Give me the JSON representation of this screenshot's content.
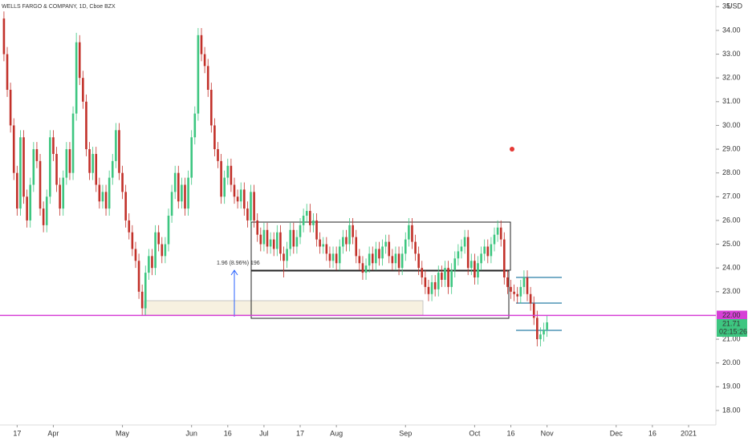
{
  "chart_data": {
    "type": "candlestick",
    "title": "WELLS FARGO & COMPANY, 1D, Cboe BZX",
    "currency": "USD",
    "annotation": "1.96 (8.96%) 196",
    "last_price_label": "21.71",
    "countdown": "02:15:26",
    "hline_label": "22.00",
    "hline": 22,
    "hline_color": "#d63fd6",
    "up_color": "#3dc680",
    "down_color": "#c2312a",
    "grid": false,
    "xlim": [
      -1.2,
      216.3
    ],
    "ylim": [
      17.39,
      35.28
    ],
    "xticks": [
      {
        "value": 4,
        "label": "17"
      },
      {
        "value": 15,
        "label": "Apr"
      },
      {
        "value": 36,
        "label": "May"
      },
      {
        "value": 57,
        "label": "Jun"
      },
      {
        "value": 68,
        "label": "16"
      },
      {
        "value": 79,
        "label": "Jul"
      },
      {
        "value": 90,
        "label": "17"
      },
      {
        "value": 101,
        "label": "Aug"
      },
      {
        "value": 122,
        "label": "Sep"
      },
      {
        "value": 143,
        "label": "Oct"
      },
      {
        "value": 154,
        "label": "16"
      },
      {
        "value": 165,
        "label": "Nov"
      },
      {
        "value": 186,
        "label": "Dec"
      },
      {
        "value": 197,
        "label": "16"
      },
      {
        "value": 208,
        "label": "2021"
      }
    ],
    "yticks": [
      {
        "value": 18,
        "label": "18.00"
      },
      {
        "value": 19,
        "label": "19.00"
      },
      {
        "value": 20,
        "label": "20.00"
      },
      {
        "value": 21,
        "label": "21.00"
      },
      {
        "value": 23,
        "label": "23.00"
      },
      {
        "value": 24,
        "label": "24.00"
      },
      {
        "value": 25,
        "label": "25.00"
      },
      {
        "value": 26,
        "label": "26.00"
      },
      {
        "value": 27,
        "label": "27.00"
      },
      {
        "value": 28,
        "label": "28.00"
      },
      {
        "value": 29,
        "label": "29.00"
      },
      {
        "value": 30,
        "label": "30.00"
      },
      {
        "value": 31,
        "label": "31.00"
      },
      {
        "value": 32,
        "label": "32.00"
      },
      {
        "value": 33,
        "label": "33.00"
      },
      {
        "value": 34,
        "label": "34.00"
      },
      35
    ],
    "candles": [
      [
        34.5,
        34.8,
        32.7,
        33.0
      ],
      [
        33.0,
        33.3,
        31.2,
        31.5
      ],
      [
        31.5,
        31.8,
        29.7,
        30.0
      ],
      [
        30.0,
        30.3,
        27.7,
        28.0
      ],
      [
        28.0,
        28.3,
        26.2,
        26.5
      ],
      [
        26.5,
        29.8,
        26.2,
        29.5
      ],
      [
        29.5,
        29.8,
        26.7,
        27.0
      ],
      [
        27.0,
        27.3,
        25.7,
        26.0
      ],
      [
        26.0,
        27.8,
        25.7,
        27.5
      ],
      [
        27.5,
        29.3,
        27.2,
        29.0
      ],
      [
        29.0,
        29.3,
        28.2,
        28.5
      ],
      [
        28.5,
        28.8,
        26.2,
        26.5
      ],
      [
        26.5,
        26.8,
        25.5,
        25.8
      ],
      [
        25.8,
        27.3,
        25.5,
        27.0
      ],
      [
        27.0,
        29.8,
        26.7,
        29.5
      ],
      [
        29.5,
        29.8,
        28.5,
        28.8
      ],
      [
        28.8,
        29.1,
        27.2,
        27.5
      ],
      [
        27.5,
        27.8,
        26.2,
        26.5
      ],
      [
        26.5,
        28.1,
        26.2,
        27.8
      ],
      [
        27.8,
        29.3,
        27.5,
        29.0
      ],
      [
        29.0,
        29.3,
        27.7,
        28.0
      ],
      [
        28.0,
        30.8,
        27.7,
        30.5
      ],
      [
        30.5,
        33.9,
        30.2,
        33.5
      ],
      [
        33.5,
        33.8,
        31.7,
        32.0
      ],
      [
        32.0,
        32.3,
        30.7,
        31.0
      ],
      [
        31.0,
        31.3,
        28.7,
        29.0
      ],
      [
        29.0,
        29.3,
        27.7,
        28.0
      ],
      [
        28.0,
        29.1,
        27.7,
        28.8
      ],
      [
        28.8,
        29.1,
        27.2,
        27.5
      ],
      [
        27.5,
        27.8,
        26.5,
        26.8
      ],
      [
        26.8,
        27.5,
        26.5,
        27.2
      ],
      [
        27.2,
        27.5,
        26.2,
        26.5
      ],
      [
        26.5,
        28.1,
        26.2,
        27.8
      ],
      [
        27.8,
        28.8,
        27.5,
        28.5
      ],
      [
        28.5,
        30.1,
        28.2,
        29.8
      ],
      [
        29.8,
        30.1,
        27.7,
        28.0
      ],
      [
        28.0,
        28.3,
        26.9,
        27.2
      ],
      [
        27.2,
        27.5,
        25.7,
        26.0
      ],
      [
        26.0,
        26.3,
        25.2,
        25.5
      ],
      [
        25.5,
        25.8,
        24.5,
        24.8
      ],
      [
        24.8,
        25.1,
        24.0,
        24.3
      ],
      [
        24.3,
        24.6,
        22.7,
        23.0
      ],
      [
        23.0,
        23.3,
        22.0,
        22.3
      ],
      [
        22.3,
        24.1,
        22.0,
        23.8
      ],
      [
        23.8,
        24.8,
        23.5,
        24.5
      ],
      [
        24.5,
        24.8,
        23.7,
        24.0
      ],
      [
        24.0,
        25.8,
        23.7,
        25.5
      ],
      [
        25.5,
        25.8,
        24.7,
        25.0
      ],
      [
        25.0,
        25.3,
        24.2,
        24.5
      ],
      [
        24.5,
        25.3,
        24.2,
        25.0
      ],
      [
        25.0,
        26.5,
        24.7,
        26.2
      ],
      [
        26.2,
        27.5,
        25.9,
        27.2
      ],
      [
        27.2,
        28.3,
        26.9,
        28.0
      ],
      [
        28.0,
        28.3,
        26.5,
        26.8
      ],
      [
        26.8,
        27.8,
        26.5,
        27.5
      ],
      [
        27.5,
        27.8,
        26.2,
        26.5
      ],
      [
        26.5,
        28.1,
        26.2,
        27.8
      ],
      [
        27.8,
        29.8,
        27.5,
        29.5
      ],
      [
        29.5,
        30.8,
        29.2,
        30.5
      ],
      [
        30.5,
        34.1,
        30.2,
        33.8
      ],
      [
        33.8,
        34.1,
        32.7,
        33.0
      ],
      [
        33.0,
        33.3,
        32.2,
        32.5
      ],
      [
        32.5,
        32.8,
        31.2,
        31.5
      ],
      [
        31.5,
        31.8,
        29.7,
        30.0
      ],
      [
        30.0,
        30.3,
        28.7,
        29.0
      ],
      [
        29.0,
        29.3,
        28.2,
        28.5
      ],
      [
        28.5,
        28.8,
        26.7,
        27.0
      ],
      [
        27.0,
        28.1,
        26.7,
        27.8
      ],
      [
        27.8,
        28.6,
        27.5,
        28.3
      ],
      [
        28.3,
        28.6,
        27.2,
        27.5
      ],
      [
        27.5,
        27.8,
        26.7,
        27.0
      ],
      [
        27.0,
        27.3,
        26.5,
        26.8
      ],
      [
        26.8,
        27.6,
        26.5,
        27.3
      ],
      [
        27.3,
        27.6,
        26.2,
        26.5
      ],
      [
        26.5,
        26.8,
        25.7,
        26.0
      ],
      [
        26.0,
        27.5,
        25.7,
        27.2
      ],
      [
        27.2,
        27.5,
        25.7,
        26.0
      ],
      [
        26.0,
        26.3,
        25.1,
        25.4
      ],
      [
        25.4,
        25.7,
        24.7,
        25.0
      ],
      [
        25.0,
        25.9,
        24.7,
        25.6
      ],
      [
        25.6,
        25.9,
        24.6,
        24.9
      ],
      [
        24.9,
        25.5,
        24.6,
        25.2
      ],
      [
        25.2,
        25.5,
        24.5,
        24.8
      ],
      [
        24.8,
        25.8,
        24.5,
        25.5
      ],
      [
        25.5,
        25.8,
        24.3,
        24.6
      ],
      [
        24.6,
        24.9,
        23.6,
        24.3
      ],
      [
        24.3,
        25.1,
        24.0,
        24.8
      ],
      [
        24.8,
        25.9,
        24.5,
        25.6
      ],
      [
        25.6,
        25.9,
        24.6,
        24.9
      ],
      [
        24.9,
        25.6,
        24.6,
        25.3
      ],
      [
        25.3,
        26.1,
        25.0,
        25.8
      ],
      [
        25.8,
        26.5,
        25.5,
        26.2
      ],
      [
        26.2,
        26.7,
        25.9,
        26.4
      ],
      [
        26.4,
        26.7,
        25.5,
        25.8
      ],
      [
        25.8,
        26.3,
        25.5,
        26.0
      ],
      [
        26.0,
        26.3,
        24.9,
        25.2
      ],
      [
        25.2,
        25.5,
        24.6,
        24.9
      ],
      [
        24.9,
        25.3,
        24.6,
        25.0
      ],
      [
        25.0,
        25.3,
        24.3,
        24.6
      ],
      [
        24.6,
        24.9,
        24.0,
        24.3
      ],
      [
        24.3,
        24.9,
        24.0,
        24.6
      ],
      [
        24.6,
        24.9,
        23.9,
        24.2
      ],
      [
        24.2,
        25.2,
        23.9,
        24.9
      ],
      [
        24.9,
        25.6,
        24.6,
        25.3
      ],
      [
        25.3,
        25.6,
        24.7,
        25.0
      ],
      [
        25.0,
        26.1,
        24.7,
        25.8
      ],
      [
        25.8,
        26.1,
        25.0,
        25.3
      ],
      [
        25.3,
        25.6,
        24.2,
        24.5
      ],
      [
        24.5,
        24.8,
        23.9,
        24.2
      ],
      [
        24.2,
        24.5,
        23.5,
        23.8
      ],
      [
        23.8,
        24.4,
        23.5,
        24.1
      ],
      [
        24.1,
        24.9,
        23.8,
        24.6
      ],
      [
        24.6,
        24.9,
        23.9,
        24.2
      ],
      [
        24.2,
        25.1,
        23.9,
        24.8
      ],
      [
        24.8,
        25.1,
        24.1,
        24.4
      ],
      [
        24.4,
        25.2,
        24.1,
        24.9
      ],
      [
        24.9,
        25.4,
        24.6,
        25.1
      ],
      [
        25.1,
        25.4,
        24.2,
        24.5
      ],
      [
        24.5,
        24.8,
        23.9,
        24.2
      ],
      [
        24.2,
        24.9,
        23.9,
        24.6
      ],
      [
        24.6,
        24.9,
        23.7,
        24.0
      ],
      [
        24.0,
        24.9,
        23.7,
        24.6
      ],
      [
        24.6,
        25.5,
        24.3,
        25.2
      ],
      [
        25.2,
        26.1,
        24.9,
        25.8
      ],
      [
        25.8,
        26.1,
        24.8,
        25.1
      ],
      [
        25.1,
        25.4,
        24.3,
        24.6
      ],
      [
        24.6,
        24.9,
        23.7,
        24.0
      ],
      [
        24.0,
        24.3,
        23.3,
        23.6
      ],
      [
        23.6,
        23.9,
        22.9,
        23.2
      ],
      [
        23.2,
        23.5,
        22.6,
        22.9
      ],
      [
        22.9,
        23.7,
        22.6,
        23.4
      ],
      [
        23.4,
        23.7,
        22.8,
        23.1
      ],
      [
        23.1,
        24.1,
        22.8,
        23.8
      ],
      [
        23.8,
        24.1,
        23.2,
        23.5
      ],
      [
        23.5,
        24.3,
        23.2,
        24.0
      ],
      [
        24.0,
        24.3,
        22.9,
        23.2
      ],
      [
        23.2,
        24.2,
        22.9,
        23.9
      ],
      [
        23.9,
        24.7,
        23.6,
        24.4
      ],
      [
        24.4,
        25.0,
        24.1,
        24.7
      ],
      [
        24.7,
        25.2,
        24.4,
        24.9
      ],
      [
        24.9,
        25.6,
        24.6,
        25.3
      ],
      [
        25.3,
        25.6,
        23.7,
        24.0
      ],
      [
        24.0,
        24.6,
        23.7,
        24.3
      ],
      [
        24.3,
        24.6,
        23.3,
        23.6
      ],
      [
        23.6,
        24.5,
        23.3,
        24.2
      ],
      [
        24.2,
        24.9,
        23.9,
        24.6
      ],
      [
        24.6,
        25.2,
        24.3,
        24.9
      ],
      [
        24.9,
        25.2,
        24.2,
        24.5
      ],
      [
        24.5,
        25.3,
        24.2,
        25.0
      ],
      [
        25.0,
        25.7,
        24.7,
        25.4
      ],
      [
        25.4,
        26.0,
        25.1,
        25.7
      ],
      [
        25.7,
        26.0,
        24.9,
        25.2
      ],
      [
        25.2,
        25.5,
        23.3,
        23.6
      ],
      [
        23.6,
        23.9,
        22.9,
        23.2
      ],
      [
        23.2,
        23.5,
        22.7,
        23.0
      ],
      [
        23.0,
        23.3,
        22.6,
        22.9
      ],
      [
        22.9,
        23.2,
        22.5,
        22.8
      ],
      [
        22.8,
        23.5,
        22.5,
        23.2
      ],
      [
        23.2,
        23.9,
        22.9,
        23.6
      ],
      [
        23.6,
        23.9,
        22.6,
        22.9
      ],
      [
        22.9,
        23.2,
        22.2,
        22.5
      ],
      [
        22.5,
        22.8,
        21.6,
        21.9
      ],
      [
        21.9,
        22.2,
        20.7,
        21.0
      ],
      [
        21.0,
        21.5,
        20.7,
        21.2
      ],
      [
        21.2,
        21.7,
        20.9,
        21.4
      ],
      [
        21.4,
        22.0,
        21.1,
        21.71
      ]
    ]
  }
}
